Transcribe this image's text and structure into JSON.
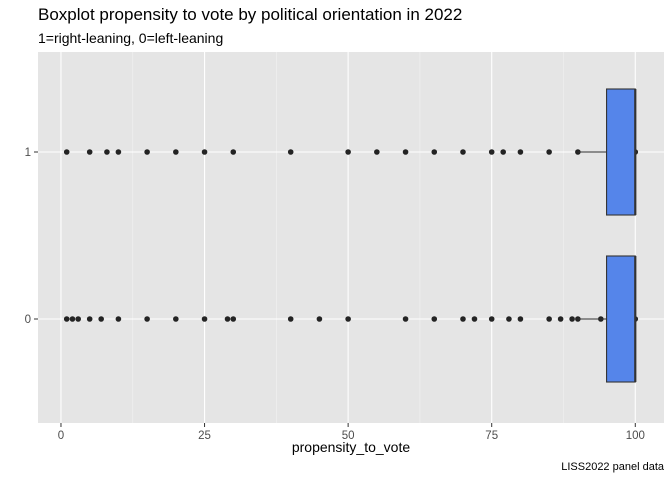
{
  "chart_data": {
    "type": "boxplot",
    "orientation": "horizontal",
    "title": "Boxplot propensity to vote by political orientation in 2022",
    "subtitle": "1=right-leaning, 0=left-leaning",
    "xlabel": "propensity_to_vote",
    "ylabel": "",
    "caption": "LISS2022 panel data",
    "xlim": [
      -4,
      105
    ],
    "x_ticks": [
      0,
      25,
      50,
      75,
      100
    ],
    "x_tick_labels": [
      "0",
      "25",
      "50",
      "75",
      "100"
    ],
    "categories": [
      "0",
      "1"
    ],
    "box_color": "#5585ea",
    "panel_color": "#e5e5e5",
    "boxes": [
      {
        "category": "0",
        "whisker_low": 90,
        "q1": 95,
        "median": 100,
        "q3": 100,
        "whisker_high": 100,
        "points": [
          1,
          2,
          3,
          5,
          7,
          10,
          15,
          20,
          25,
          29,
          30,
          40,
          45,
          50,
          60,
          65,
          70,
          72,
          75,
          78,
          80,
          85,
          87,
          89,
          90,
          94,
          96,
          97,
          98,
          99,
          100
        ]
      },
      {
        "category": "1",
        "whisker_low": 90,
        "q1": 95,
        "median": 100,
        "q3": 100,
        "whisker_high": 100,
        "points": [
          1,
          5,
          8,
          10,
          15,
          20,
          25,
          30,
          40,
          50,
          55,
          60,
          65,
          70,
          75,
          77,
          80,
          85,
          90,
          96,
          97,
          98,
          99,
          100
        ]
      }
    ],
    "grid": true,
    "legend": "none"
  }
}
